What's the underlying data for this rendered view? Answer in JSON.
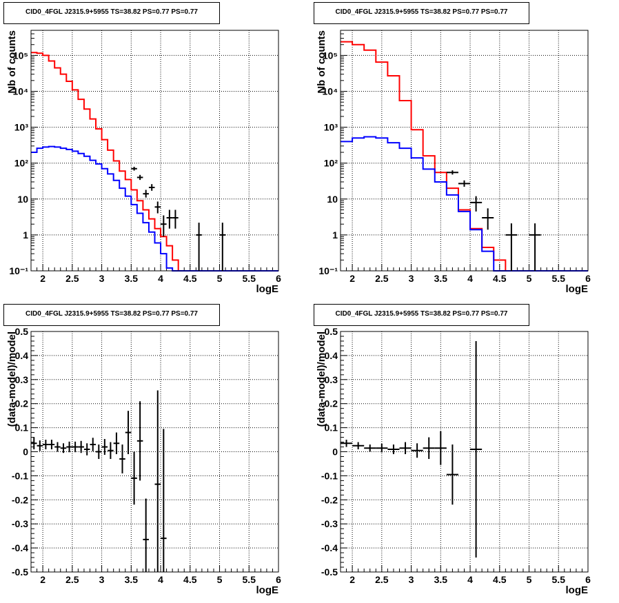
{
  "chart_data": [
    {
      "type": "line",
      "title": "CID0_4FGL J2315.9+5955 TS=38.82 PS=0.77 PS=0.77",
      "xlabel": "logE",
      "ylabel": "Nb of counts",
      "xlim": [
        1.8,
        6.0
      ],
      "ylim": [
        0.1,
        500000
      ],
      "log_y": true,
      "grid": true,
      "xticks": [
        "2",
        "2.5",
        "3",
        "3.5",
        "4",
        "4.5",
        "5",
        "5.5",
        "6"
      ],
      "yticks": [
        "10⁻¹",
        "1",
        "10",
        "10²",
        "10³",
        "10⁴",
        "10⁵"
      ],
      "bin_edges": [
        1.8,
        1.9,
        2.0,
        2.1,
        2.2,
        2.3,
        2.4,
        2.5,
        2.6,
        2.7,
        2.8,
        2.9,
        3.0,
        3.1,
        3.2,
        3.3,
        3.4,
        3.5,
        3.6,
        3.7,
        3.8,
        3.9,
        4.0,
        4.1,
        4.2,
        4.3,
        4.4,
        4.5,
        4.6,
        4.7,
        4.8,
        4.9,
        5.0,
        5.1,
        5.2,
        5.3,
        5.4,
        5.5,
        5.6,
        5.7,
        5.8,
        5.9,
        6.0
      ],
      "series": [
        {
          "values": [
            120000,
            115000,
            100000,
            70000,
            45000,
            30000,
            19000,
            11000,
            6000,
            3200,
            1700,
            900,
            450,
            230,
            115,
            60,
            35,
            18,
            9,
            5,
            2.8,
            1.5,
            0.9,
            0.5,
            0.2,
            0.1,
            0.08,
            0.06,
            0.05,
            0.05,
            0.05,
            0.05,
            0.05,
            0.05,
            0.05,
            0.05,
            0.05,
            0.05,
            0.05,
            0.05,
            0.05,
            0.05
          ]
        },
        {
          "values": [
            200,
            260,
            280,
            290,
            280,
            260,
            240,
            215,
            185,
            155,
            120,
            95,
            70,
            50,
            33,
            20,
            12,
            7,
            4,
            2.2,
            1.2,
            0.6,
            0.3,
            0.12,
            0.06,
            0.05,
            0.05,
            0.05,
            0.05,
            0.05,
            0.05,
            0.05,
            0.05,
            0.05,
            0.05,
            0.05,
            0.05,
            0.05,
            0.05,
            0.05,
            0.05,
            0.05
          ]
        }
      ],
      "points": [
        {
          "x": 3.55,
          "y": 70,
          "ylo": 62,
          "yhi": 79
        },
        {
          "x": 3.65,
          "y": 40,
          "ylo": 34,
          "yhi": 47
        },
        {
          "x": 3.75,
          "y": 14,
          "ylo": 11,
          "yhi": 18
        },
        {
          "x": 3.85,
          "y": 21,
          "ylo": 17,
          "yhi": 26
        },
        {
          "x": 3.95,
          "y": 6,
          "ylo": 4,
          "yhi": 8.5
        },
        {
          "x": 4.05,
          "y": 2,
          "ylo": 0.9,
          "yhi": 3.5
        },
        {
          "x": 4.15,
          "y": 3,
          "ylo": 1.5,
          "yhi": 5
        },
        {
          "x": 4.25,
          "y": 3,
          "ylo": 1.5,
          "yhi": 5
        },
        {
          "x": 4.65,
          "y": 1,
          "ylo": 0.1,
          "yhi": 2.2
        },
        {
          "x": 5.05,
          "y": 1,
          "ylo": 0.1,
          "yhi": 2.2
        }
      ]
    },
    {
      "type": "line",
      "title": "CID0_4FGL J2315.9+5955 TS=38.82 PS=0.77 PS=0.77",
      "xlabel": "logE",
      "ylabel": "Nb of counts",
      "xlim": [
        1.8,
        6.0
      ],
      "ylim": [
        0.1,
        500000
      ],
      "log_y": true,
      "grid": true,
      "xticks": [
        "2",
        "2.5",
        "3",
        "3.5",
        "4",
        "4.5",
        "5",
        "5.5",
        "6"
      ],
      "yticks": [
        "10⁻¹",
        "1",
        "10",
        "10²",
        "10³",
        "10⁴",
        "10⁵"
      ],
      "bin_edges": [
        1.8,
        2.0,
        2.2,
        2.4,
        2.6,
        2.8,
        3.0,
        3.2,
        3.4,
        3.6,
        3.8,
        4.0,
        4.2,
        4.4,
        4.6,
        4.8,
        5.0,
        5.2,
        5.4,
        5.6,
        5.8,
        6.0
      ],
      "series": [
        {
          "values": [
            240000,
            200000,
            140000,
            65000,
            27000,
            5500,
            850,
            160,
            55,
            20,
            5,
            1.5,
            0.45,
            0.2,
            0.05,
            0.05,
            0.05,
            0.05,
            0.05,
            0.05,
            0.05
          ]
        },
        {
          "values": [
            400,
            500,
            540,
            500,
            370,
            260,
            140,
            68,
            30,
            13,
            4.5,
            1.4,
            0.35,
            0.1,
            0.05,
            0.05,
            0.05,
            0.05,
            0.05,
            0.05,
            0.05
          ]
        }
      ],
      "points": [
        {
          "x": 3.7,
          "y": 55,
          "ylo": 48,
          "yhi": 63
        },
        {
          "x": 3.9,
          "y": 27,
          "ylo": 22,
          "yhi": 33
        },
        {
          "x": 4.1,
          "y": 8,
          "ylo": 4.5,
          "yhi": 12
        },
        {
          "x": 4.3,
          "y": 3,
          "ylo": 1.4,
          "yhi": 5.5
        },
        {
          "x": 4.7,
          "y": 1,
          "ylo": 0.1,
          "yhi": 2.1
        },
        {
          "x": 5.1,
          "y": 1,
          "ylo": 0.1,
          "yhi": 2.1
        }
      ]
    },
    {
      "type": "scatter",
      "title": "CID0_4FGL J2315.9+5955 TS=38.82 PS=0.77 PS=0.77",
      "xlabel": "logE",
      "ylabel": "(data-model)/model",
      "xlim": [
        1.8,
        6.0
      ],
      "ylim": [
        -0.5,
        0.5
      ],
      "grid": true,
      "xticks": [
        "2",
        "2.5",
        "3",
        "3.5",
        "4",
        "4.5",
        "5",
        "5.5",
        "6"
      ],
      "yticks": [
        "-0.5",
        "-0.4",
        "-0.3",
        "-0.2",
        "-0.1",
        "0",
        "0.1",
        "0.2",
        "0.3",
        "0.4",
        "0.5"
      ],
      "bin_halfwidth": 0.05,
      "points": [
        {
          "x": 1.85,
          "y": 0.035,
          "err": 0.025
        },
        {
          "x": 1.95,
          "y": 0.025,
          "err": 0.022
        },
        {
          "x": 2.05,
          "y": 0.03,
          "err": 0.02
        },
        {
          "x": 2.15,
          "y": 0.03,
          "err": 0.02
        },
        {
          "x": 2.25,
          "y": 0.02,
          "err": 0.02
        },
        {
          "x": 2.35,
          "y": 0.015,
          "err": 0.02
        },
        {
          "x": 2.45,
          "y": 0.02,
          "err": 0.022
        },
        {
          "x": 2.55,
          "y": 0.02,
          "err": 0.022
        },
        {
          "x": 2.65,
          "y": 0.02,
          "err": 0.025
        },
        {
          "x": 2.75,
          "y": 0.01,
          "err": 0.025
        },
        {
          "x": 2.85,
          "y": 0.03,
          "err": 0.028
        },
        {
          "x": 2.95,
          "y": 0.0,
          "err": 0.03
        },
        {
          "x": 3.05,
          "y": 0.02,
          "err": 0.033
        },
        {
          "x": 3.15,
          "y": 0.005,
          "err": 0.035
        },
        {
          "x": 3.25,
          "y": 0.035,
          "err": 0.045
        },
        {
          "x": 3.35,
          "y": -0.03,
          "err": 0.06
        },
        {
          "x": 3.45,
          "y": 0.08,
          "err": 0.09
        },
        {
          "x": 3.55,
          "y": -0.11,
          "err": 0.11
        },
        {
          "x": 3.65,
          "y": 0.045,
          "err": 0.165
        },
        {
          "x": 3.75,
          "y": -0.365,
          "err": 0.17
        },
        {
          "x": 3.95,
          "y": -0.135,
          "err": 0.39
        },
        {
          "x": 4.05,
          "y": -0.36,
          "err": 0.455
        }
      ]
    },
    {
      "type": "scatter",
      "title": "CID0_4FGL J2315.9+5955 TS=38.82 PS=0.77 PS=0.77",
      "xlabel": "logE",
      "ylabel": "(data-model)/model",
      "xlim": [
        1.8,
        6.0
      ],
      "ylim": [
        -0.5,
        0.5
      ],
      "grid": true,
      "xticks": [
        "2",
        "2.5",
        "3",
        "3.5",
        "4",
        "4.5",
        "5",
        "5.5",
        "6"
      ],
      "yticks": [
        "-0.5",
        "-0.4",
        "-0.3",
        "-0.2",
        "-0.1",
        "0",
        "0.1",
        "0.2",
        "0.3",
        "0.4",
        "0.5"
      ],
      "bin_halfwidth": 0.1,
      "points": [
        {
          "x": 1.9,
          "y": 0.035,
          "err": 0.015
        },
        {
          "x": 2.1,
          "y": 0.025,
          "err": 0.015
        },
        {
          "x": 2.3,
          "y": 0.015,
          "err": 0.015
        },
        {
          "x": 2.5,
          "y": 0.015,
          "err": 0.018
        },
        {
          "x": 2.7,
          "y": 0.01,
          "err": 0.02
        },
        {
          "x": 2.9,
          "y": 0.015,
          "err": 0.025
        },
        {
          "x": 3.1,
          "y": 0.005,
          "err": 0.03
        },
        {
          "x": 3.3,
          "y": 0.015,
          "err": 0.045
        },
        {
          "x": 3.5,
          "y": 0.015,
          "err": 0.07
        },
        {
          "x": 3.7,
          "y": -0.095,
          "err": 0.125
        },
        {
          "x": 4.1,
          "y": 0.01,
          "err": 0.45
        }
      ]
    }
  ]
}
